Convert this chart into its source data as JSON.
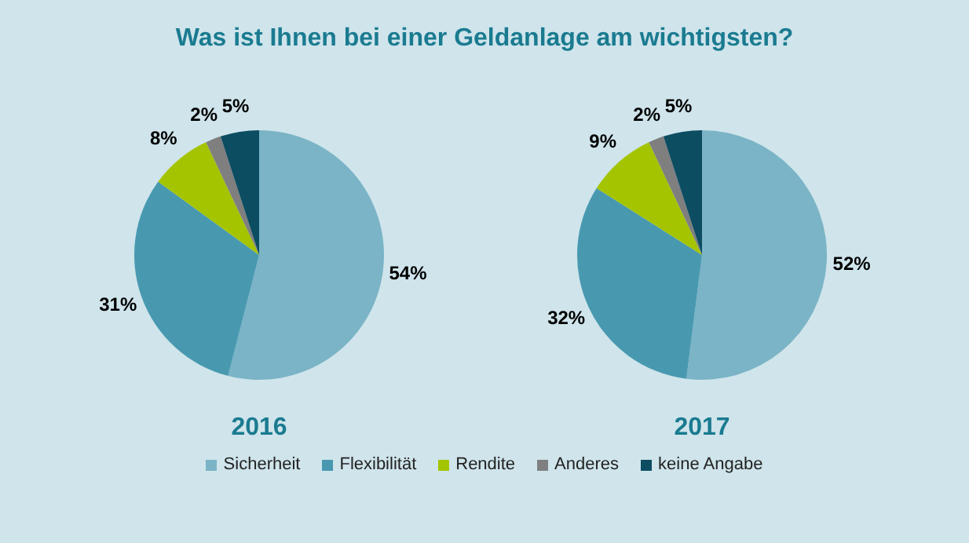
{
  "chart_data": [
    {
      "type": "pie",
      "title": "Was ist Ihnen bei einer Geldanlage am wichtigsten?",
      "xlabel": "2016",
      "categories": [
        "Sicherheit",
        "Flexibilität",
        "Rendite",
        "Anderes",
        "keine Angabe"
      ],
      "values": [
        54,
        31,
        8,
        2,
        5
      ],
      "value_labels": [
        "54%",
        "31%",
        "8%",
        "2%",
        "5%"
      ],
      "colors": [
        "#7ab4c6",
        "#4899b0",
        "#a5c400",
        "#7f7f7f",
        "#0d4d62"
      ],
      "legend": "bottom"
    },
    {
      "type": "pie",
      "xlabel": "2017",
      "categories": [
        null,
        null,
        null,
        null,
        null
      ],
      "values": [
        52,
        32,
        9,
        2,
        5
      ],
      "value_labels": [
        "52%",
        "32%",
        "9%",
        "2%",
        "5%"
      ],
      "colors": [
        "#7ab4c6",
        "#4899b0",
        "#a5c400",
        "#7f7f7f",
        "#0d4d62"
      ]
    }
  ]
}
